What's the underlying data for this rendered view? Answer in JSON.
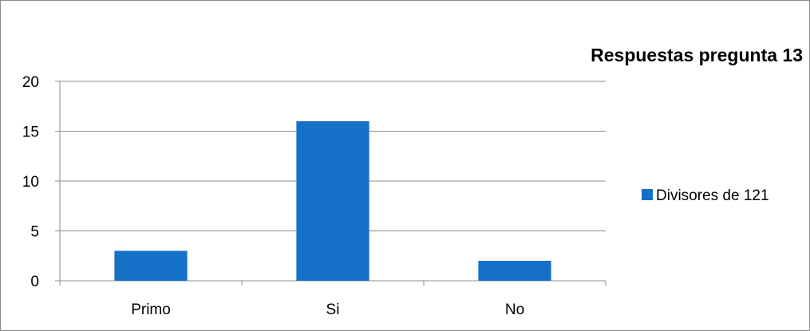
{
  "chart_data": {
    "type": "bar",
    "title": "Respuestas pregunta 13",
    "categories": [
      "Primo",
      "Si",
      "No"
    ],
    "series": [
      {
        "name": "Divisores de 121",
        "values": [
          3,
          16,
          2
        ],
        "color": "#1570c8"
      }
    ],
    "ylim": [
      0,
      20
    ],
    "yticks": [
      "0",
      "5",
      "10",
      "15",
      "20"
    ],
    "grid": true,
    "legend": "right"
  }
}
